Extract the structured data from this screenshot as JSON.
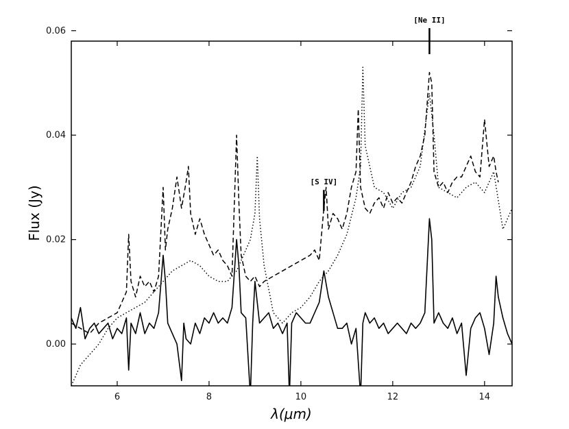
{
  "chart_data": {
    "type": "line",
    "xlabel": "λ(μm)",
    "ylabel": "Flux (Jy)",
    "xlim": [
      5.0,
      14.6
    ],
    "ylim": [
      -0.008,
      0.058
    ],
    "x_ticks": [
      6,
      8,
      10,
      12,
      14
    ],
    "y_ticks": [
      0.0,
      0.02,
      0.04,
      0.06
    ],
    "x_tick_labels": [
      "6",
      "8",
      "10",
      "12",
      "14"
    ],
    "y_tick_labels": [
      "0.00",
      "0.02",
      "0.04",
      "0.06"
    ],
    "grid": false,
    "annotations": [
      {
        "text": "[S IV]",
        "x": 10.5,
        "y_line_bottom": 0.0255,
        "y_line_top": 0.0295
      },
      {
        "text": "[Ne II]",
        "x": 12.8,
        "y_line_bottom": 0.0555,
        "y_line_top": 0.0605
      }
    ],
    "series": [
      {
        "style": "solid",
        "x": [
          5.0,
          5.1,
          5.2,
          5.3,
          5.4,
          5.5,
          5.6,
          5.7,
          5.8,
          5.9,
          6.0,
          6.1,
          6.2,
          6.25,
          6.3,
          6.4,
          6.5,
          6.6,
          6.7,
          6.8,
          6.9,
          7.0,
          7.05,
          7.1,
          7.2,
          7.3,
          7.4,
          7.45,
          7.5,
          7.6,
          7.7,
          7.8,
          7.9,
          8.0,
          8.1,
          8.2,
          8.3,
          8.4,
          8.5,
          8.6,
          8.65,
          8.7,
          8.8,
          8.9,
          8.95,
          9.0,
          9.1,
          9.2,
          9.3,
          9.4,
          9.5,
          9.6,
          9.7,
          9.75,
          9.8,
          9.9,
          10.0,
          10.1,
          10.2,
          10.3,
          10.4,
          10.5,
          10.6,
          10.7,
          10.8,
          10.9,
          11.0,
          11.1,
          11.2,
          11.3,
          11.35,
          11.4,
          11.5,
          11.6,
          11.7,
          11.8,
          11.9,
          12.0,
          12.1,
          12.2,
          12.3,
          12.4,
          12.5,
          12.6,
          12.7,
          12.8,
          12.85,
          12.9,
          13.0,
          13.1,
          13.2,
          13.3,
          13.4,
          13.5,
          13.6,
          13.7,
          13.8,
          13.9,
          14.0,
          14.1,
          14.2,
          14.25,
          14.3,
          14.4,
          14.5,
          14.6
        ],
        "y": [
          0.005,
          0.003,
          0.007,
          0.001,
          0.003,
          0.004,
          0.002,
          0.003,
          0.004,
          0.001,
          0.003,
          0.002,
          0.005,
          -0.005,
          0.004,
          0.002,
          0.006,
          0.002,
          0.004,
          0.003,
          0.006,
          0.017,
          0.012,
          0.004,
          0.002,
          0.0,
          -0.007,
          0.004,
          0.001,
          0.0,
          0.004,
          0.002,
          0.005,
          0.004,
          0.006,
          0.004,
          0.005,
          0.004,
          0.007,
          0.02,
          0.015,
          0.006,
          0.005,
          -0.01,
          0.004,
          0.012,
          0.004,
          0.005,
          0.006,
          0.003,
          0.004,
          0.002,
          0.004,
          -0.01,
          0.004,
          0.006,
          0.005,
          0.004,
          0.004,
          0.006,
          0.008,
          0.014,
          0.009,
          0.006,
          0.003,
          0.003,
          0.004,
          0.0,
          0.003,
          -0.01,
          0.004,
          0.006,
          0.004,
          0.005,
          0.003,
          0.004,
          0.002,
          0.003,
          0.004,
          0.003,
          0.002,
          0.004,
          0.003,
          0.004,
          0.006,
          0.024,
          0.02,
          0.004,
          0.006,
          0.004,
          0.003,
          0.005,
          0.002,
          0.004,
          -0.006,
          0.003,
          0.005,
          0.006,
          0.003,
          -0.002,
          0.004,
          0.013,
          0.009,
          0.005,
          0.002,
          0.0
        ]
      },
      {
        "style": "dashed",
        "x": [
          5.0,
          5.2,
          5.4,
          5.6,
          5.8,
          6.0,
          6.1,
          6.2,
          6.25,
          6.3,
          6.4,
          6.5,
          6.6,
          6.7,
          6.8,
          6.9,
          7.0,
          7.05,
          7.1,
          7.2,
          7.3,
          7.4,
          7.5,
          7.55,
          7.6,
          7.7,
          7.8,
          7.9,
          8.0,
          8.1,
          8.2,
          8.3,
          8.4,
          8.5,
          8.6,
          8.65,
          8.7,
          8.8,
          8.9,
          9.0,
          9.1,
          9.2,
          9.4,
          9.6,
          9.8,
          10.0,
          10.2,
          10.3,
          10.4,
          10.5,
          10.55,
          10.6,
          10.7,
          10.8,
          10.9,
          11.0,
          11.1,
          11.2,
          11.25,
          11.3,
          11.4,
          11.5,
          11.6,
          11.7,
          11.8,
          11.9,
          12.0,
          12.1,
          12.2,
          12.3,
          12.4,
          12.5,
          12.6,
          12.7,
          12.8,
          12.85,
          12.9,
          13.0,
          13.1,
          13.2,
          13.3,
          13.4,
          13.5,
          13.6,
          13.7,
          13.8,
          13.9,
          14.0,
          14.1,
          14.2,
          14.25,
          14.3
        ],
        "y": [
          0.004,
          0.003,
          0.002,
          0.004,
          0.005,
          0.006,
          0.008,
          0.01,
          0.021,
          0.012,
          0.009,
          0.013,
          0.011,
          0.012,
          0.01,
          0.013,
          0.03,
          0.018,
          0.022,
          0.026,
          0.032,
          0.026,
          0.031,
          0.034,
          0.025,
          0.021,
          0.024,
          0.021,
          0.019,
          0.017,
          0.018,
          0.016,
          0.015,
          0.013,
          0.04,
          0.027,
          0.017,
          0.013,
          0.012,
          0.013,
          0.011,
          0.012,
          0.013,
          0.014,
          0.015,
          0.016,
          0.017,
          0.018,
          0.016,
          0.026,
          0.03,
          0.022,
          0.025,
          0.024,
          0.022,
          0.025,
          0.03,
          0.033,
          0.045,
          0.03,
          0.026,
          0.025,
          0.027,
          0.028,
          0.026,
          0.029,
          0.027,
          0.028,
          0.027,
          0.029,
          0.031,
          0.034,
          0.036,
          0.04,
          0.052,
          0.05,
          0.033,
          0.03,
          0.031,
          0.029,
          0.031,
          0.032,
          0.032,
          0.034,
          0.036,
          0.033,
          0.032,
          0.043,
          0.034,
          0.036,
          0.033,
          0.031
        ]
      },
      {
        "style": "dotted",
        "x": [
          5.0,
          5.2,
          5.4,
          5.6,
          5.8,
          6.0,
          6.2,
          6.4,
          6.6,
          6.8,
          7.0,
          7.2,
          7.4,
          7.6,
          7.8,
          8.0,
          8.2,
          8.4,
          8.6,
          8.7,
          8.8,
          8.9,
          9.0,
          9.05,
          9.1,
          9.2,
          9.4,
          9.6,
          9.8,
          10.0,
          10.2,
          10.4,
          10.6,
          10.8,
          11.0,
          11.2,
          11.3,
          11.35,
          11.4,
          11.6,
          11.8,
          12.0,
          12.2,
          12.4,
          12.6,
          12.8,
          12.9,
          13.0,
          13.2,
          13.4,
          13.6,
          13.8,
          14.0,
          14.2,
          14.4,
          14.6
        ],
        "y": [
          -0.008,
          -0.004,
          -0.002,
          0.0,
          0.003,
          0.005,
          0.006,
          0.007,
          0.008,
          0.01,
          0.012,
          0.014,
          0.015,
          0.016,
          0.015,
          0.013,
          0.012,
          0.012,
          0.014,
          0.016,
          0.018,
          0.02,
          0.025,
          0.036,
          0.024,
          0.015,
          0.006,
          0.004,
          0.006,
          0.007,
          0.009,
          0.012,
          0.014,
          0.017,
          0.021,
          0.028,
          0.034,
          0.053,
          0.038,
          0.03,
          0.029,
          0.026,
          0.029,
          0.03,
          0.034,
          0.048,
          0.04,
          0.03,
          0.029,
          0.028,
          0.03,
          0.031,
          0.029,
          0.033,
          0.022,
          0.026
        ]
      }
    ]
  }
}
